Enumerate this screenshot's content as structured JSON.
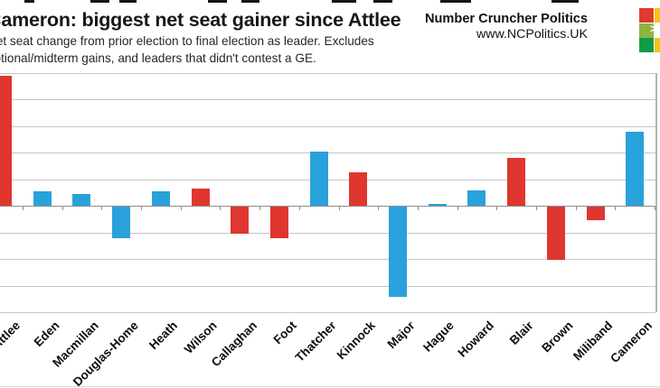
{
  "header": {
    "brand": "Number Cruncher Politics",
    "url": "www.NCPolitics.UK",
    "logo_mark": ">",
    "logo_colors": {
      "red": "#e03a2e",
      "yellow": "#f2c318",
      "light_green": "#8db442",
      "dark_green": "#0f9c49"
    }
  },
  "chart_data": {
    "type": "bar",
    "title": "Cameron: biggest net seat gainer since Attlee",
    "subtitle_lines": [
      "Net seat change from prior election to final election as leader. Excludes",
      "notional/midterm gains, and leaders that didn't contest a GE."
    ],
    "categories": [
      "Attlee",
      "Eden",
      "Macmillan",
      "Douglas-Home",
      "Heath",
      "Wilson",
      "Callaghan",
      "Foot",
      "Thatcher",
      "Kinnock",
      "Major",
      "Hague",
      "Howard",
      "Blair",
      "Brown",
      "Miliband",
      "Cameron"
    ],
    "values": [
      244,
      27,
      22,
      -60,
      27,
      32,
      -51,
      -60,
      101,
      63,
      -169,
      3,
      28,
      90,
      -100,
      -26,
      139
    ],
    "parties": [
      "Labour",
      "Conservative",
      "Conservative",
      "Conservative",
      "Conservative",
      "Labour",
      "Labour",
      "Labour",
      "Conservative",
      "Labour",
      "Conservative",
      "Conservative",
      "Conservative",
      "Labour",
      "Labour",
      "Labour",
      "Conservative"
    ],
    "colors": {
      "Labour": "#df362f",
      "Conservative": "#29a2db"
    },
    "xlabel": "",
    "ylabel": "",
    "y_axis": {
      "min": -200,
      "max": 250,
      "step": 50,
      "tick_labels_visible": false
    },
    "legend": "none",
    "grid": true
  }
}
